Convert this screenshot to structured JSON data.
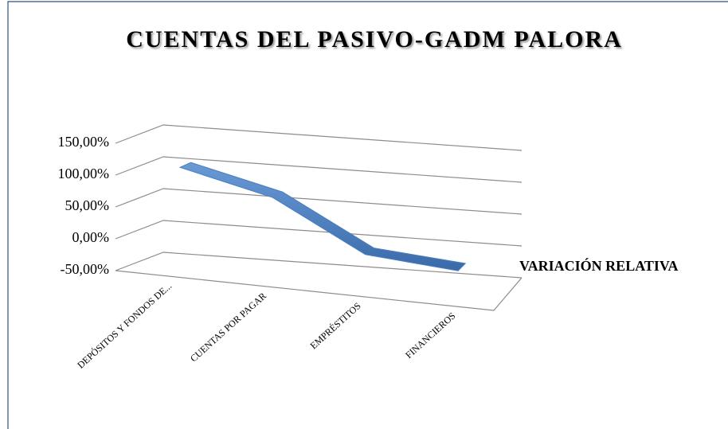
{
  "chart_data": {
    "type": "line3d",
    "title": "CUENTAS DEL PASIVO-GADM PALORA",
    "categories": [
      "DEPÓSITOS Y FONDOS DE...",
      "CUENTAS POR PAGAR",
      "EMPRÉSTITOS",
      "FINANCIEROS"
    ],
    "series": [
      {
        "name": "VARIACIÓN RELATIVA",
        "color": "#4a7fc0",
        "values": [
          108,
          74,
          -2,
          -14
        ]
      }
    ],
    "ylim": [
      -50,
      150
    ],
    "yticks": [
      {
        "value": -50,
        "label": "-50,00%"
      },
      {
        "value": 0,
        "label": "0,00%"
      },
      {
        "value": 50,
        "label": "50,00%"
      },
      {
        "value": 100,
        "label": "100,00%"
      },
      {
        "value": 150,
        "label": "150,00%"
      }
    ],
    "grid": true,
    "legend": "right"
  }
}
